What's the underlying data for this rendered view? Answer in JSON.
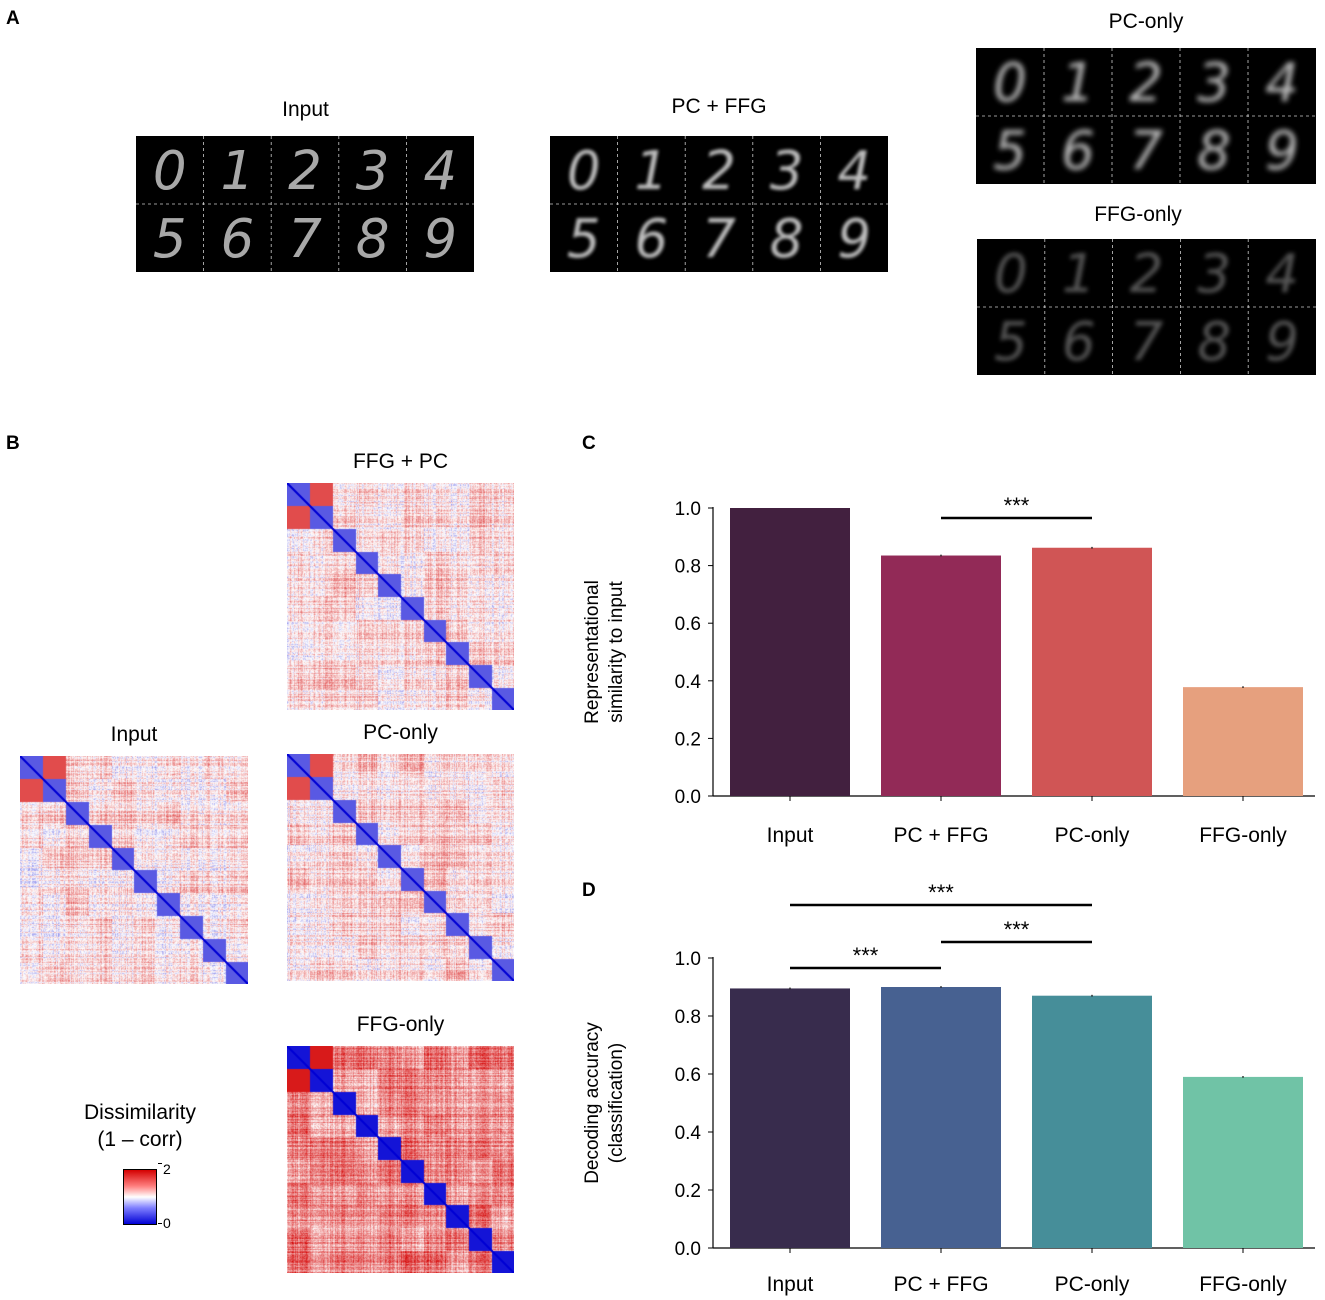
{
  "panels": {
    "a": "A",
    "b": "B",
    "c": "C",
    "d": "D"
  },
  "panel_a": {
    "input_title": "Input",
    "pcffg_title": "PC + FFG",
    "pconly_title": "PC-only",
    "ffgonly_title": "FFG-only",
    "digits_row1": [
      "0",
      "1",
      "2",
      "3",
      "4"
    ],
    "digits_row2": [
      "5",
      "6",
      "7",
      "8",
      "9"
    ]
  },
  "panel_b": {
    "ffgpc_title": "FFG + PC",
    "input_title": "Input",
    "pconly_title": "PC-only",
    "ffgonly_title": "FFG-only",
    "colorbar_title1": "Dissimilarity",
    "colorbar_title2": "(1 – corr)",
    "colorbar_max": "2",
    "colorbar_min": "0",
    "colors": {
      "low": "#0000d4",
      "mid": "#ffffff",
      "high": "#d40000"
    }
  },
  "chart_data": [
    {
      "id": "C",
      "type": "bar",
      "ylabel": "Representational similarity to input",
      "ylabel_lines": [
        "Representational",
        "similarity to input"
      ],
      "categories": [
        "Input",
        "PC + FFG",
        "PC-only",
        "FFG-only"
      ],
      "values": [
        1.0,
        0.835,
        0.862,
        0.378
      ],
      "errors": [
        0.0,
        0.003,
        0.003,
        0.003
      ],
      "colors": [
        "#42203f",
        "#922a57",
        "#d05555",
        "#e6a07e"
      ],
      "ylim": [
        0,
        1.0
      ],
      "yticks": [
        "0.0",
        "0.2",
        "0.4",
        "0.6",
        "0.8",
        "1.0"
      ],
      "significance": [
        {
          "from": 1,
          "to": 2,
          "label": "***"
        }
      ]
    },
    {
      "id": "D",
      "type": "bar",
      "ylabel": "Decoding accuracy (classification)",
      "ylabel_lines": [
        "Decoding accuracy",
        "(classification)"
      ],
      "categories": [
        "Input",
        "PC + FFG",
        "PC-only",
        "FFG-only"
      ],
      "values": [
        0.895,
        0.9,
        0.87,
        0.59
      ],
      "errors": [
        0.003,
        0.003,
        0.003,
        0.003
      ],
      "colors": [
        "#382c4d",
        "#476191",
        "#468e99",
        "#70c3a6"
      ],
      "ylim": [
        0,
        1.0
      ],
      "yticks": [
        "0.0",
        "0.2",
        "0.4",
        "0.6",
        "0.8",
        "1.0"
      ],
      "significance": [
        {
          "from": 0,
          "to": 1,
          "label": "***"
        },
        {
          "from": 1,
          "to": 2,
          "label": "***"
        },
        {
          "from": 0,
          "to": 2,
          "label": "***"
        }
      ]
    }
  ]
}
